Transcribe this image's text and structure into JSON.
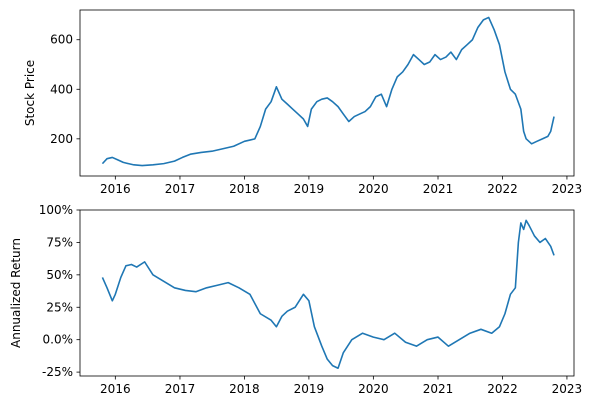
{
  "chart_data": [
    {
      "type": "line",
      "ylabel": "Stock Price",
      "xlabel": "",
      "xlim": [
        "2015-06-15",
        "2023-02-10"
      ],
      "ylim": [
        50,
        720
      ],
      "x_ticks": [
        "2016-01-01",
        "2017-01-01",
        "2018-01-01",
        "2019-01-01",
        "2020-01-01",
        "2021-01-01",
        "2022-01-01",
        "2023-01-01"
      ],
      "x_tick_labels": [
        "2016",
        "2017",
        "2018",
        "2019",
        "2020",
        "2021",
        "2022",
        "2023"
      ],
      "y_ticks": [
        200,
        400,
        600
      ],
      "y_tick_labels": [
        "200",
        "400",
        "600"
      ],
      "grid": false,
      "color": "#1f77b4",
      "series": [
        {
          "x": [
            "2015-10-20",
            "2015-11-15",
            "2015-12-15",
            "2016-01-15",
            "2016-02-15",
            "2016-03-15",
            "2016-04-15",
            "2016-06-01",
            "2016-08-01",
            "2016-10-01",
            "2016-12-01",
            "2017-01-15",
            "2017-03-01",
            "2017-05-01",
            "2017-07-01",
            "2017-09-01",
            "2017-11-01",
            "2018-01-01",
            "2018-02-01",
            "2018-03-01",
            "2018-04-01",
            "2018-05-01",
            "2018-06-01",
            "2018-07-01",
            "2018-08-01",
            "2018-09-01",
            "2018-10-01",
            "2018-11-01",
            "2018-12-01",
            "2018-12-25",
            "2019-01-15",
            "2019-02-15",
            "2019-03-15",
            "2019-04-15",
            "2019-05-15",
            "2019-06-15",
            "2019-07-15",
            "2019-08-15",
            "2019-09-15",
            "2019-10-15",
            "2019-11-15",
            "2019-12-15",
            "2020-01-15",
            "2020-02-15",
            "2020-03-16",
            "2020-04-15",
            "2020-05-15",
            "2020-06-15",
            "2020-07-15",
            "2020-08-15",
            "2020-09-15",
            "2020-10-15",
            "2020-11-15",
            "2020-12-15",
            "2021-01-15",
            "2021-02-15",
            "2021-03-15",
            "2021-04-15",
            "2021-05-15",
            "2021-06-15",
            "2021-07-15",
            "2021-08-15",
            "2021-09-15",
            "2021-10-15",
            "2021-11-15",
            "2021-12-15",
            "2022-01-15",
            "2022-02-15",
            "2022-03-15",
            "2022-04-15",
            "2022-05-01",
            "2022-05-15",
            "2022-06-15",
            "2022-07-15",
            "2022-08-15",
            "2022-09-15",
            "2022-10-01",
            "2022-10-20"
          ],
          "values": [
            100,
            120,
            125,
            115,
            105,
            100,
            95,
            92,
            95,
            100,
            110,
            125,
            138,
            145,
            150,
            160,
            170,
            190,
            195,
            200,
            250,
            320,
            350,
            410,
            360,
            340,
            320,
            300,
            280,
            250,
            320,
            350,
            360,
            365,
            350,
            330,
            300,
            270,
            290,
            300,
            310,
            330,
            370,
            380,
            330,
            400,
            450,
            470,
            500,
            540,
            520,
            500,
            510,
            540,
            520,
            530,
            550,
            520,
            560,
            580,
            600,
            650,
            680,
            690,
            640,
            580,
            470,
            400,
            380,
            320,
            230,
            200,
            180,
            190,
            200,
            210,
            230,
            290
          ]
        }
      ]
    },
    {
      "type": "line",
      "ylabel": "Annualized Return",
      "xlabel": "",
      "xlim": [
        "2015-06-15",
        "2023-02-10"
      ],
      "ylim": [
        -0.28,
        1.0
      ],
      "x_ticks": [
        "2016-01-01",
        "2017-01-01",
        "2018-01-01",
        "2019-01-01",
        "2020-01-01",
        "2021-01-01",
        "2022-01-01",
        "2023-01-01"
      ],
      "x_tick_labels": [
        "2016",
        "2017",
        "2018",
        "2019",
        "2020",
        "2021",
        "2022",
        "2023"
      ],
      "y_ticks": [
        -0.25,
        0,
        0.25,
        0.5,
        0.75,
        1.0
      ],
      "y_tick_labels": [
        "-25%",
        "0.0%",
        "25%",
        "50%",
        "75%",
        "100%"
      ],
      "grid": false,
      "color": "#1f77b4",
      "series": [
        {
          "x": [
            "2015-10-20",
            "2015-11-15",
            "2015-12-15",
            "2016-01-01",
            "2016-02-01",
            "2016-03-01",
            "2016-04-01",
            "2016-05-01",
            "2016-06-15",
            "2016-08-01",
            "2016-10-01",
            "2016-12-01",
            "2017-02-01",
            "2017-04-01",
            "2017-06-01",
            "2017-08-01",
            "2017-10-01",
            "2017-12-01",
            "2018-02-01",
            "2018-04-01",
            "2018-06-01",
            "2018-07-01",
            "2018-08-01",
            "2018-09-01",
            "2018-10-15",
            "2018-12-01",
            "2019-01-01",
            "2019-02-01",
            "2019-03-15",
            "2019-04-15",
            "2019-05-15",
            "2019-06-15",
            "2019-07-15",
            "2019-09-01",
            "2019-11-01",
            "2020-01-01",
            "2020-03-01",
            "2020-05-01",
            "2020-07-01",
            "2020-09-01",
            "2020-11-01",
            "2021-01-01",
            "2021-03-01",
            "2021-05-01",
            "2021-07-01",
            "2021-09-01",
            "2021-11-01",
            "2021-12-15",
            "2022-01-15",
            "2022-02-15",
            "2022-03-15",
            "2022-04-01",
            "2022-04-15",
            "2022-05-01",
            "2022-05-15",
            "2022-06-01",
            "2022-07-01",
            "2022-08-01",
            "2022-09-01",
            "2022-10-01",
            "2022-10-20"
          ],
          "values": [
            0.48,
            0.4,
            0.3,
            0.35,
            0.48,
            0.57,
            0.58,
            0.56,
            0.6,
            0.5,
            0.45,
            0.4,
            0.38,
            0.37,
            0.4,
            0.42,
            0.44,
            0.4,
            0.35,
            0.2,
            0.15,
            0.1,
            0.18,
            0.22,
            0.25,
            0.35,
            0.3,
            0.1,
            -0.05,
            -0.15,
            -0.2,
            -0.22,
            -0.1,
            0.0,
            0.05,
            0.02,
            0.0,
            0.05,
            -0.02,
            -0.05,
            0.0,
            0.02,
            -0.05,
            0.0,
            0.05,
            0.08,
            0.05,
            0.1,
            0.2,
            0.35,
            0.4,
            0.75,
            0.9,
            0.85,
            0.92,
            0.88,
            0.8,
            0.75,
            0.78,
            0.72,
            0.65
          ]
        }
      ]
    }
  ]
}
